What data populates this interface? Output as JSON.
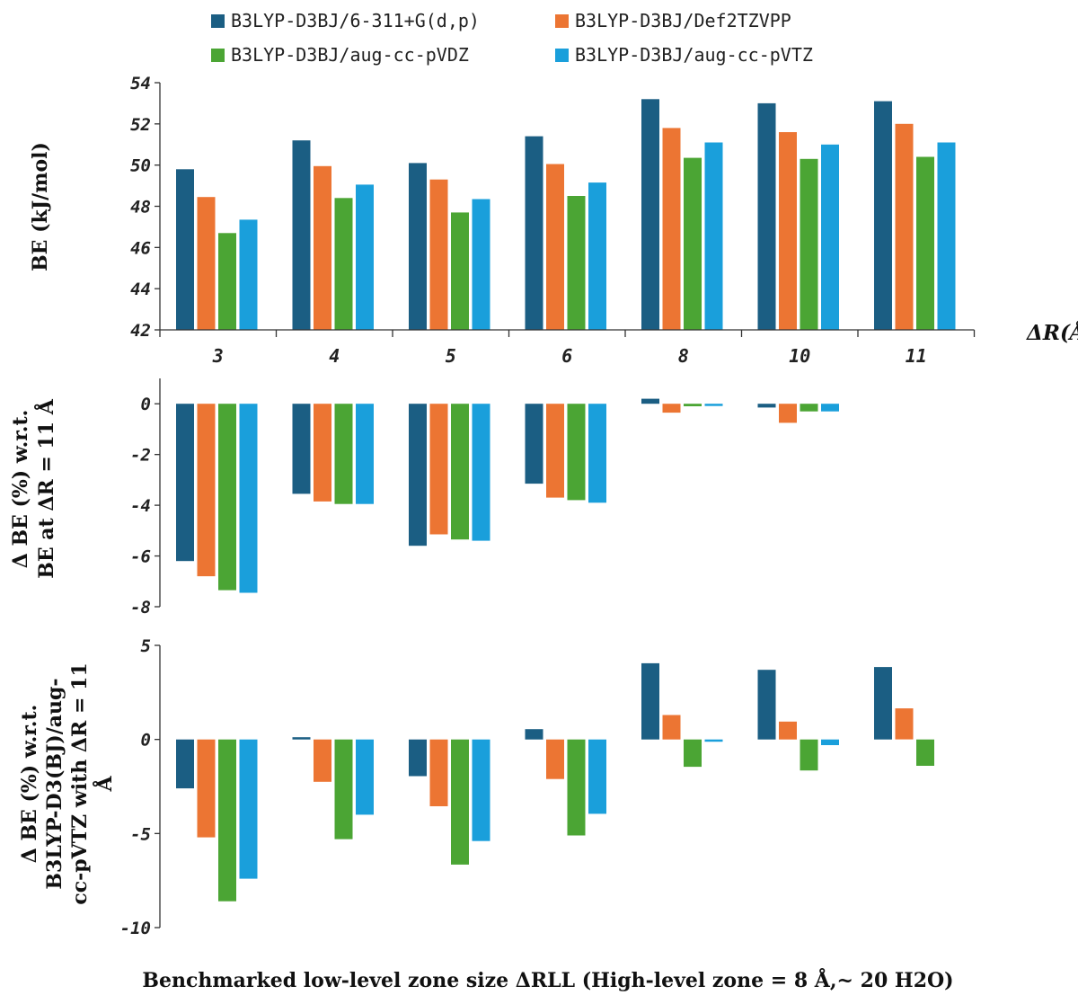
{
  "legend": [
    {
      "label": "B3LYP-D3BJ/6-311+G(d,p)",
      "color": "#1b5e83"
    },
    {
      "label": "B3LYP-D3BJ/Def2TZVPP",
      "color": "#ec7533"
    },
    {
      "label": "B3LYP-D3BJ/aug-cc-pVDZ",
      "color": "#4ba534"
    },
    {
      "label": "B3LYP-D3BJ/aug-cc-pVTZ",
      "color": "#1a9fdb"
    }
  ],
  "delta_r_label": "ΔR(Å)",
  "x_axis_title": "Benchmarked low-level zone size ΔRLL (High-level zone = 8 Å,~ 20 H2O)",
  "chart_data": [
    {
      "type": "bar",
      "ylabel": "BE (kJ/mol)",
      "ylim": [
        42,
        54
      ],
      "yticks": [
        42,
        44,
        46,
        48,
        50,
        52,
        54
      ],
      "categories": [
        "3",
        "4",
        "5",
        "6",
        "8",
        "10",
        "11"
      ],
      "series": [
        {
          "name": "B3LYP-D3BJ/6-311+G(d,p)",
          "values": [
            49.8,
            51.2,
            50.1,
            51.4,
            53.2,
            53.0,
            53.1
          ]
        },
        {
          "name": "B3LYP-D3BJ/Def2TZVPP",
          "values": [
            48.45,
            49.95,
            49.3,
            50.05,
            51.8,
            51.6,
            52.0
          ]
        },
        {
          "name": "B3LYP-D3BJ/aug-cc-pVDZ",
          "values": [
            46.7,
            48.4,
            47.7,
            48.5,
            50.35,
            50.3,
            50.4
          ]
        },
        {
          "name": "B3LYP-D3BJ/aug-cc-pVTZ",
          "values": [
            47.35,
            49.05,
            48.35,
            49.15,
            51.1,
            51.0,
            51.1
          ]
        }
      ]
    },
    {
      "type": "bar",
      "ylabel_lines": [
        "Δ BE (%) w.r.t.",
        "BE at ΔR = 11 Å"
      ],
      "ylim": [
        -8,
        1
      ],
      "yticks": [
        0,
        -2,
        -4,
        -6,
        -8
      ],
      "categories": [
        "3",
        "4",
        "5",
        "6",
        "8",
        "10",
        "11"
      ],
      "series": [
        {
          "name": "B3LYP-D3BJ/6-311+G(d,p)",
          "values": [
            -6.2,
            -3.55,
            -5.6,
            -3.15,
            0.2,
            -0.15,
            0
          ]
        },
        {
          "name": "B3LYP-D3BJ/Def2TZVPP",
          "values": [
            -6.8,
            -3.85,
            -5.15,
            -3.7,
            -0.35,
            -0.75,
            0
          ]
        },
        {
          "name": "B3LYP-D3BJ/aug-cc-pVDZ",
          "values": [
            -7.35,
            -3.95,
            -5.35,
            -3.8,
            -0.1,
            -0.3,
            0
          ]
        },
        {
          "name": "B3LYP-D3BJ/aug-cc-pVTZ",
          "values": [
            -7.45,
            -3.95,
            -5.4,
            -3.9,
            -0.05,
            -0.3,
            0
          ]
        }
      ]
    },
    {
      "type": "bar",
      "ylabel_lines": [
        "Δ BE (%) w.r.t.",
        "B3LYP-D3(BJ)/aug-",
        "cc-pVTZ with ΔR = 11",
        "Å"
      ],
      "ylim": [
        -10,
        5
      ],
      "yticks": [
        5,
        0,
        -5,
        -10
      ],
      "categories": [
        "3",
        "4",
        "5",
        "6",
        "8",
        "10",
        "11"
      ],
      "series": [
        {
          "name": "B3LYP-D3BJ/6-311+G(d,p)",
          "values": [
            -2.6,
            0.1,
            -1.95,
            0.55,
            4.05,
            3.7,
            3.85
          ]
        },
        {
          "name": "B3LYP-D3BJ/Def2TZVPP",
          "values": [
            -5.2,
            -2.25,
            -3.55,
            -2.1,
            1.3,
            0.95,
            1.65
          ]
        },
        {
          "name": "B3LYP-D3BJ/aug-cc-pVDZ",
          "values": [
            -8.6,
            -5.3,
            -6.65,
            -5.1,
            -1.45,
            -1.65,
            -1.4
          ]
        },
        {
          "name": "B3LYP-D3BJ/aug-cc-pVTZ",
          "values": [
            -7.4,
            -4.0,
            -5.4,
            -3.95,
            -0.05,
            -0.3,
            0
          ]
        }
      ]
    }
  ]
}
